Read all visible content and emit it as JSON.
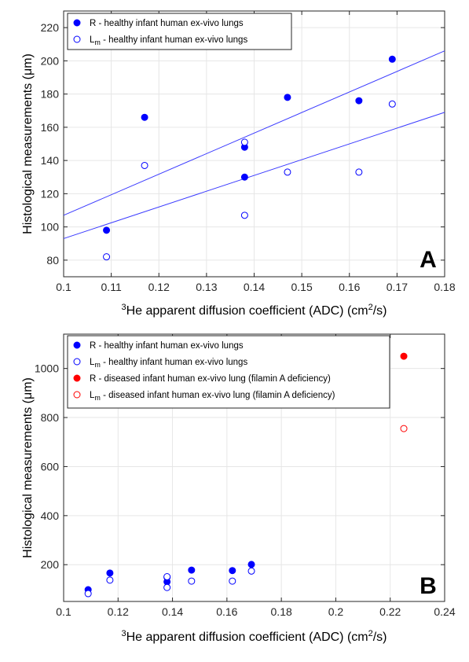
{
  "colors": {
    "healthy": "#0000ff",
    "diseased": "#ff0000",
    "fit_line": "#3b3bff",
    "grid": "#e6e6e6",
    "axis": "#262626"
  },
  "chart_data": [
    {
      "panel_label": "A",
      "type": "scatter",
      "ylabel": "Histological measurements (μm)",
      "xlabel_parts": [
        "3",
        "He apparent diffusion coefficient (ADC) (cm",
        "2",
        "/s)"
      ],
      "xlim": [
        0.1,
        0.18
      ],
      "ylim": [
        70,
        230
      ],
      "xticks": [
        "0.1",
        "0.11",
        "0.12",
        "0.13",
        "0.14",
        "0.15",
        "0.16",
        "0.17",
        "0.18"
      ],
      "xtick_values": [
        0.1,
        0.11,
        0.12,
        0.13,
        0.14,
        0.15,
        0.16,
        0.17,
        0.18
      ],
      "yticks": [
        "80",
        "100",
        "120",
        "140",
        "160",
        "180",
        "200",
        "220"
      ],
      "ytick_values": [
        80,
        100,
        120,
        140,
        160,
        180,
        200,
        220
      ],
      "grid": true,
      "legend_position": "top-left",
      "series": [
        {
          "legend_main": "R",
          "legend_sub": "",
          "legend_desc": " - healthy infant human ex-vivo lungs",
          "marker": "filled",
          "color": "#0000ff",
          "points": [
            [
              0.109,
              98
            ],
            [
              0.117,
              166
            ],
            [
              0.138,
              148
            ],
            [
              0.138,
              130
            ],
            [
              0.147,
              178
            ],
            [
              0.162,
              176
            ],
            [
              0.169,
              201
            ]
          ]
        },
        {
          "legend_main": "L",
          "legend_sub": "m",
          "legend_desc": " - healthy infant human ex-vivo lungs",
          "marker": "open",
          "color": "#0000ff",
          "points": [
            [
              0.109,
              82
            ],
            [
              0.117,
              137
            ],
            [
              0.138,
              151
            ],
            [
              0.138,
              107
            ],
            [
              0.147,
              133
            ],
            [
              0.162,
              133
            ],
            [
              0.169,
              174
            ]
          ]
        }
      ],
      "fit_lines": [
        {
          "x": [
            0.1,
            0.18
          ],
          "y": [
            107,
            206
          ]
        },
        {
          "x": [
            0.1,
            0.18
          ],
          "y": [
            93,
            169
          ]
        }
      ]
    },
    {
      "panel_label": "B",
      "type": "scatter",
      "ylabel": "Histological measurements (μm)",
      "xlabel_parts": [
        "3",
        "He apparent diffusion coefficient (ADC) (cm",
        "2",
        "/s)"
      ],
      "xlim": [
        0.1,
        0.24
      ],
      "ylim": [
        50,
        1140
      ],
      "xticks": [
        "0.1",
        "0.12",
        "0.14",
        "0.16",
        "0.18",
        "0.2",
        "0.22",
        "0.24"
      ],
      "xtick_values": [
        0.1,
        0.12,
        0.14,
        0.16,
        0.18,
        0.2,
        0.22,
        0.24
      ],
      "yticks": [
        "200",
        "400",
        "600",
        "800",
        "1000"
      ],
      "ytick_values": [
        200,
        400,
        600,
        800,
        1000
      ],
      "grid": true,
      "legend_position": "top-left",
      "series": [
        {
          "legend_main": "R",
          "legend_sub": "",
          "legend_desc": " - healthy infant human ex-vivo lungs",
          "marker": "filled",
          "color": "#0000ff",
          "points": [
            [
              0.109,
              98
            ],
            [
              0.117,
              166
            ],
            [
              0.138,
              148
            ],
            [
              0.138,
              130
            ],
            [
              0.147,
              178
            ],
            [
              0.162,
              176
            ],
            [
              0.169,
              201
            ]
          ]
        },
        {
          "legend_main": "L",
          "legend_sub": "m",
          "legend_desc": " - healthy infant human ex-vivo lungs",
          "marker": "open",
          "color": "#0000ff",
          "points": [
            [
              0.109,
              82
            ],
            [
              0.117,
              137
            ],
            [
              0.138,
              151
            ],
            [
              0.138,
              107
            ],
            [
              0.147,
              133
            ],
            [
              0.162,
              133
            ],
            [
              0.169,
              174
            ]
          ]
        },
        {
          "legend_main": "R",
          "legend_sub": "",
          "legend_desc": " - diseased infant human ex-vivo lung (filamin A deficiency)",
          "marker": "filled",
          "color": "#ff0000",
          "points": [
            [
              0.225,
              1050
            ]
          ]
        },
        {
          "legend_main": "L",
          "legend_sub": "m",
          "legend_desc": " - diseased infant human ex-vivo lung (filamin A deficiency)",
          "marker": "open",
          "color": "#ff0000",
          "points": [
            [
              0.225,
              755
            ]
          ]
        }
      ],
      "fit_lines": []
    }
  ]
}
